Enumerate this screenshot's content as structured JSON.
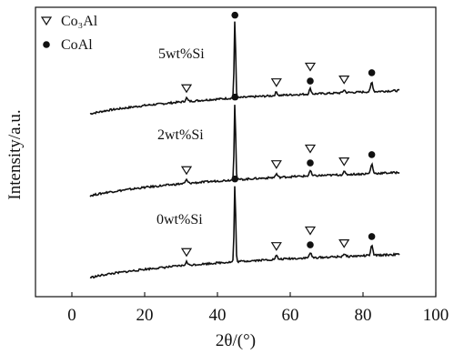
{
  "chart_data": {
    "type": "line",
    "xlabel": "2θ/(°)",
    "ylabel": "Intensity/a.u.",
    "xlim": [
      -10,
      100
    ],
    "xticks": [
      0,
      20,
      40,
      60,
      80,
      100
    ],
    "xtick_labels": [
      "0",
      "20",
      "40",
      "60",
      "80",
      "100"
    ],
    "yticks_shown": false,
    "legend": {
      "placement": "top-left",
      "entries": [
        {
          "marker": "triangle-down-open",
          "label": "Co₃Al"
        },
        {
          "marker": "circle-filled",
          "label": "CoAl"
        }
      ]
    },
    "series": [
      {
        "name": "5wt%Si",
        "offset": 2,
        "baseline": [
          [
            5,
            0.0
          ],
          [
            10,
            0.15
          ],
          [
            20,
            0.35
          ],
          [
            30,
            0.5
          ],
          [
            40,
            0.62
          ],
          [
            50,
            0.72
          ],
          [
            60,
            0.8
          ],
          [
            70,
            0.86
          ],
          [
            80,
            0.92
          ],
          [
            90,
            0.98
          ]
        ],
        "peaks": [
          {
            "x": 31.5,
            "height": 0.15,
            "phase": "Co3Al"
          },
          {
            "x": 44.8,
            "height": 3.3,
            "phase": "CoAl"
          },
          {
            "x": 56.2,
            "height": 0.15,
            "phase": "Co3Al"
          },
          {
            "x": 65.5,
            "height": 0.22,
            "phase": "CoAl+Co3Al"
          },
          {
            "x": 74.8,
            "height": 0.12,
            "phase": "Co3Al"
          },
          {
            "x": 82.4,
            "height": 0.4,
            "phase": "CoAl"
          }
        ]
      },
      {
        "name": "2wt%Si",
        "offset": 1,
        "baseline": [
          [
            5,
            0.0
          ],
          [
            10,
            0.15
          ],
          [
            20,
            0.35
          ],
          [
            30,
            0.5
          ],
          [
            40,
            0.62
          ],
          [
            50,
            0.72
          ],
          [
            60,
            0.8
          ],
          [
            70,
            0.86
          ],
          [
            80,
            0.92
          ],
          [
            90,
            0.98
          ]
        ],
        "peaks": [
          {
            "x": 31.5,
            "height": 0.15,
            "phase": "Co3Al"
          },
          {
            "x": 44.8,
            "height": 3.3,
            "phase": "CoAl"
          },
          {
            "x": 56.2,
            "height": 0.15,
            "phase": "Co3Al"
          },
          {
            "x": 65.5,
            "height": 0.22,
            "phase": "CoAl+Co3Al"
          },
          {
            "x": 74.8,
            "height": 0.12,
            "phase": "Co3Al"
          },
          {
            "x": 82.4,
            "height": 0.4,
            "phase": "CoAl"
          }
        ]
      },
      {
        "name": "0wt%Si",
        "offset": 0,
        "baseline": [
          [
            5,
            0.0
          ],
          [
            10,
            0.15
          ],
          [
            20,
            0.35
          ],
          [
            30,
            0.5
          ],
          [
            40,
            0.62
          ],
          [
            50,
            0.72
          ],
          [
            60,
            0.8
          ],
          [
            70,
            0.86
          ],
          [
            80,
            0.92
          ],
          [
            90,
            0.98
          ]
        ],
        "peaks": [
          {
            "x": 31.5,
            "height": 0.15,
            "phase": "Co3Al"
          },
          {
            "x": 44.8,
            "height": 3.3,
            "phase": "CoAl"
          },
          {
            "x": 56.2,
            "height": 0.15,
            "phase": "Co3Al"
          },
          {
            "x": 65.5,
            "height": 0.22,
            "phase": "CoAl+Co3Al"
          },
          {
            "x": 74.8,
            "height": 0.12,
            "phase": "Co3Al"
          },
          {
            "x": 82.4,
            "height": 0.4,
            "phase": "CoAl"
          }
        ]
      }
    ],
    "markers": [
      {
        "series": "5wt%Si",
        "symbol": "triangle",
        "x": 31.5,
        "level": 0.55
      },
      {
        "series": "5wt%Si",
        "symbol": "circle",
        "x": 44.8,
        "level": 3.5
      },
      {
        "series": "5wt%Si",
        "symbol": "triangle",
        "x": 56.2,
        "level": 0.55
      },
      {
        "series": "5wt%Si",
        "symbol": "circle",
        "x": 65.5,
        "level": 0.55
      },
      {
        "series": "5wt%Si",
        "symbol": "triangle",
        "x": 65.5,
        "level": 1.15
      },
      {
        "series": "5wt%Si",
        "symbol": "triangle",
        "x": 74.8,
        "level": 0.55
      },
      {
        "series": "5wt%Si",
        "symbol": "circle",
        "x": 82.4,
        "level": 0.8
      },
      {
        "series": "2wt%Si",
        "symbol": "triangle",
        "x": 31.5,
        "level": 0.55
      },
      {
        "series": "2wt%Si",
        "symbol": "circle",
        "x": 44.8,
        "level": 3.5
      },
      {
        "series": "2wt%Si",
        "symbol": "triangle",
        "x": 56.2,
        "level": 0.55
      },
      {
        "series": "2wt%Si",
        "symbol": "circle",
        "x": 65.5,
        "level": 0.55
      },
      {
        "series": "2wt%Si",
        "symbol": "triangle",
        "x": 65.5,
        "level": 1.15
      },
      {
        "series": "2wt%Si",
        "symbol": "triangle",
        "x": 74.8,
        "level": 0.55
      },
      {
        "series": "2wt%Si",
        "symbol": "circle",
        "x": 82.4,
        "level": 0.8
      },
      {
        "series": "0wt%Si",
        "symbol": "triangle",
        "x": 31.5,
        "level": 0.55
      },
      {
        "series": "0wt%Si",
        "symbol": "circle",
        "x": 44.8,
        "level": 3.5
      },
      {
        "series": "0wt%Si",
        "symbol": "triangle",
        "x": 56.2,
        "level": 0.55
      },
      {
        "series": "0wt%Si",
        "symbol": "circle",
        "x": 65.5,
        "level": 0.55
      },
      {
        "series": "0wt%Si",
        "symbol": "triangle",
        "x": 65.5,
        "level": 1.15
      },
      {
        "series": "0wt%Si",
        "symbol": "triangle",
        "x": 74.8,
        "level": 0.55
      },
      {
        "series": "0wt%Si",
        "symbol": "circle",
        "x": 82.4,
        "level": 0.8
      }
    ],
    "colors": {
      "line": "#111111",
      "marker": "#111111",
      "axis": "#111111"
    }
  }
}
